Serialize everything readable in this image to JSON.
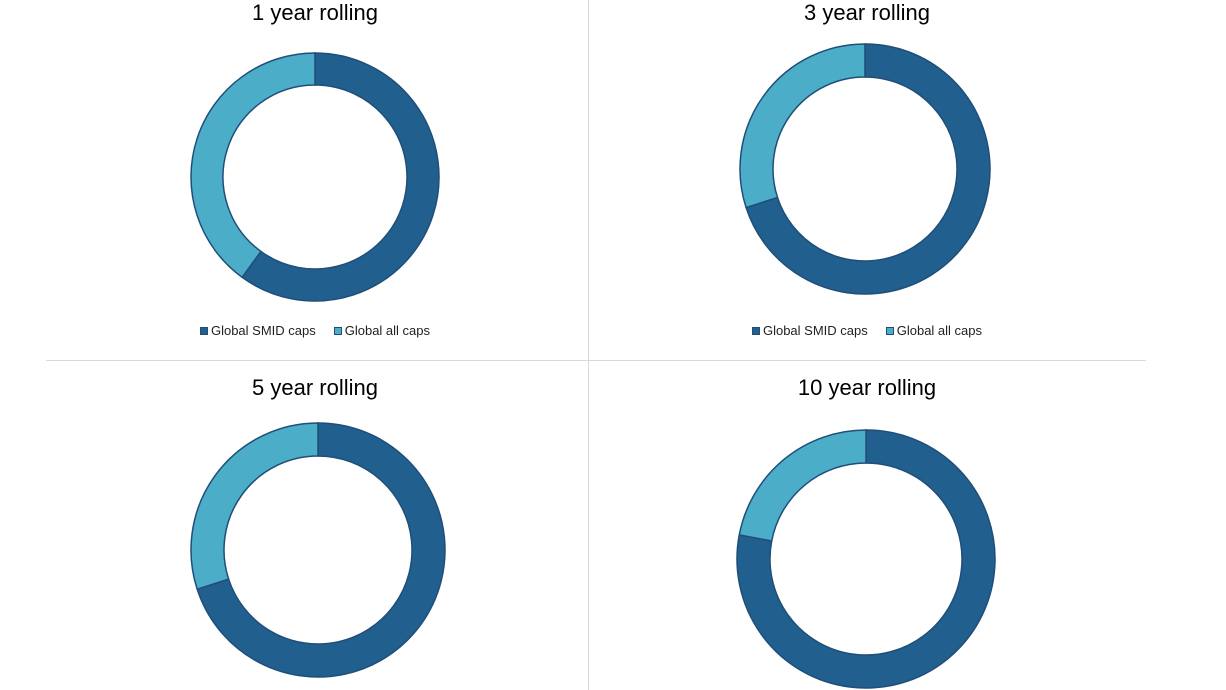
{
  "colors": {
    "smid": "#215f8f",
    "allcaps": "#4badc8",
    "stroke": "#1f4e79"
  },
  "chart_data": [
    {
      "type": "pie",
      "title": "1 year rolling",
      "categories": [
        "Global SMID caps",
        "Global all caps"
      ],
      "values": [
        60,
        40
      ],
      "legend": "bottom"
    },
    {
      "type": "pie",
      "title": "3 year rolling",
      "categories": [
        "Global SMID caps",
        "Global all caps"
      ],
      "values": [
        70,
        30
      ],
      "legend": "bottom"
    },
    {
      "type": "pie",
      "title": "5 year rolling",
      "categories": [
        "Global SMID caps",
        "Global all caps"
      ],
      "values": [
        70,
        30
      ],
      "legend": "bottom"
    },
    {
      "type": "pie",
      "title": "10 year rolling",
      "categories": [
        "Global SMID caps",
        "Global all caps"
      ],
      "values": [
        78,
        22
      ],
      "legend": "bottom"
    }
  ]
}
